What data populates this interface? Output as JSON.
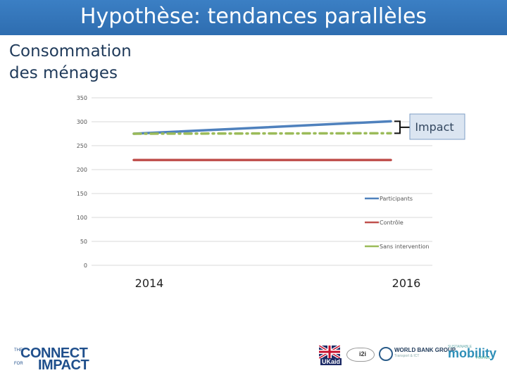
{
  "title": "Hypothèse: tendances parallèles",
  "subtitle": "Consommation des ménages",
  "colors": {
    "title_bar": "#3378be",
    "participants": "#4f81bd",
    "controle": "#c0504d",
    "sans_intervention": "#9bbb59"
  },
  "chart_data": {
    "type": "line",
    "title": "",
    "xlabel": "",
    "ylabel": "",
    "categories": [
      "2014",
      "2016"
    ],
    "ylim": [
      0,
      350
    ],
    "yticks": [
      0,
      50,
      100,
      150,
      200,
      250,
      300,
      350
    ],
    "grid": true,
    "legend_position": "right",
    "series": [
      {
        "name": "Participants",
        "values": [
          275,
          301
        ],
        "style": "solid",
        "color": "#4f81bd"
      },
      {
        "name": "Contrôle",
        "values": [
          220,
          220
        ],
        "style": "solid",
        "color": "#c0504d"
      },
      {
        "name": "Sans intervention",
        "values": [
          275,
          276
        ],
        "style": "dash-dot",
        "color": "#9bbb59"
      }
    ],
    "annotations": [
      {
        "label": "Impact"
      }
    ]
  },
  "logos": {
    "connect_line1": "CONNECT",
    "connect_line2": "IMPACT",
    "connect_small1": "THE",
    "connect_small2": "FOR",
    "ukaid": "UKaid",
    "mid": "i2i",
    "worldbank": "WORLD BANK GROUP",
    "worldbank_sub": "Transport & ICT",
    "mobility_small": "SUSTAINABLE",
    "mobility": "mobility",
    "mobility_sub": "FOR ALL"
  }
}
